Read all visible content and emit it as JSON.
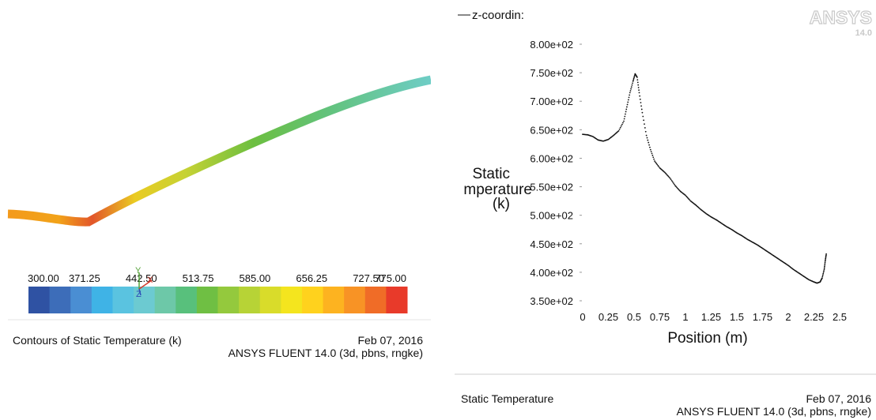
{
  "left": {
    "colorbar": {
      "tick_labels": [
        "300.00",
        "371.25",
        "442.50",
        "513.75",
        "585.00",
        "656.25",
        "727.50",
        "775.00"
      ],
      "colors": [
        "#2f52a3",
        "#3d6db9",
        "#4a8ed3",
        "#3fb3e6",
        "#5ac3e0",
        "#6ccad1",
        "#6dc8a8",
        "#58c07c",
        "#6fbf43",
        "#94c93d",
        "#b7d336",
        "#d9dc2a",
        "#f4e51e",
        "#ffd21d",
        "#fdb320",
        "#f89325",
        "#f06c27",
        "#e83a2a"
      ]
    },
    "footer": {
      "title": "Contours of Static Temperature (k)",
      "date": "Feb 07, 2016",
      "software": "ANSYS FLUENT 14.0 (3d, pbns, rngke)"
    },
    "axis_triad": {
      "x": "X",
      "y": "Y",
      "z": "Z"
    }
  },
  "right": {
    "logo": {
      "text": "ANSYS",
      "version": "14.0"
    },
    "footer": {
      "title": "Static Temperature",
      "date": "Feb 07, 2016",
      "software": "ANSYS FLUENT 14.0 (3d, pbns, rngke)"
    }
  },
  "chart_data": {
    "type": "scatter",
    "legend": {
      "entries": [
        "z-coordin:"
      ],
      "placement": "top-left"
    },
    "ylabel_lines": [
      "Static",
      "mperature",
      "(k)"
    ],
    "xlabel": "Position (m)",
    "xlim": [
      0,
      2.5
    ],
    "ylim": [
      350,
      800
    ],
    "x_ticks": [
      0,
      0.25,
      0.5,
      0.75,
      1,
      1.25,
      1.5,
      1.75,
      2,
      2.25,
      2.5
    ],
    "x_tick_labels": [
      "0",
      "0.25",
      "0.5",
      "0.75",
      "1",
      "1.25",
      "1.5",
      "1.75",
      "2",
      "2.25",
      "2.5"
    ],
    "y_ticks": [
      350,
      400,
      450,
      500,
      550,
      600,
      650,
      700,
      750,
      800
    ],
    "y_tick_labels": [
      "3.50e+02",
      "4.00e+02",
      "4.50e+02",
      "5.00e+02",
      "5.50e+02",
      "6.00e+02",
      "6.50e+02",
      "7.00e+02",
      "7.50e+02",
      "8.00e+02"
    ],
    "grid": false,
    "series": [
      {
        "points": [
          [
            0.0,
            642
          ],
          [
            0.05,
            641
          ],
          [
            0.1,
            638
          ],
          [
            0.15,
            632
          ],
          [
            0.2,
            630
          ],
          [
            0.25,
            633
          ],
          [
            0.3,
            640
          ],
          [
            0.35,
            648
          ],
          [
            0.4,
            665
          ],
          [
            0.43,
            690
          ],
          [
            0.46,
            715
          ],
          [
            0.49,
            735
          ],
          [
            0.51,
            748
          ],
          [
            0.53,
            742
          ],
          [
            0.55,
            715
          ],
          [
            0.58,
            680
          ],
          [
            0.62,
            640
          ],
          [
            0.66,
            615
          ],
          [
            0.7,
            595
          ],
          [
            0.75,
            583
          ],
          [
            0.8,
            575
          ],
          [
            0.85,
            565
          ],
          [
            0.9,
            552
          ],
          [
            0.95,
            542
          ],
          [
            1.0,
            535
          ],
          [
            1.05,
            525
          ],
          [
            1.1,
            518
          ],
          [
            1.15,
            510
          ],
          [
            1.2,
            503
          ],
          [
            1.25,
            497
          ],
          [
            1.3,
            492
          ],
          [
            1.35,
            486
          ],
          [
            1.4,
            480
          ],
          [
            1.45,
            475
          ],
          [
            1.5,
            469
          ],
          [
            1.55,
            464
          ],
          [
            1.6,
            458
          ],
          [
            1.65,
            453
          ],
          [
            1.7,
            448
          ],
          [
            1.75,
            442
          ],
          [
            1.8,
            436
          ],
          [
            1.85,
            430
          ],
          [
            1.9,
            424
          ],
          [
            1.95,
            418
          ],
          [
            2.0,
            412
          ],
          [
            2.05,
            405
          ],
          [
            2.1,
            399
          ],
          [
            2.15,
            393
          ],
          [
            2.2,
            387
          ],
          [
            2.25,
            383
          ],
          [
            2.28,
            381
          ],
          [
            2.31,
            383
          ],
          [
            2.33,
            390
          ],
          [
            2.35,
            405
          ],
          [
            2.36,
            420
          ],
          [
            2.37,
            432
          ]
        ]
      }
    ]
  }
}
